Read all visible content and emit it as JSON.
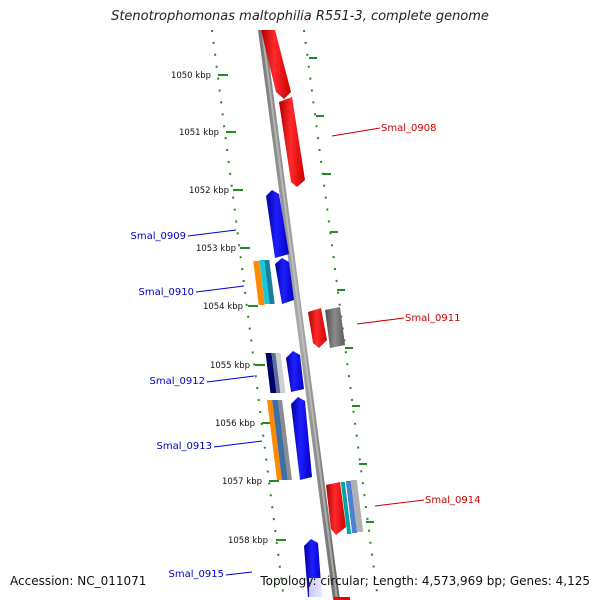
{
  "title": "Stenotrophomonas maltophilia R551-3, complete genome",
  "accession": "Accession: NC_011071",
  "summary": "Topology: circular; Length: 4,573,969 bp; Genes: 4,125",
  "ticks": [
    "1050 kbp",
    "1051 kbp",
    "1052 kbp",
    "1053 kbp",
    "1054 kbp",
    "1055 kbp",
    "1056 kbp",
    "1057 kbp",
    "1058 kbp"
  ],
  "gene_labels": {
    "smal_0908": "Smal_0908",
    "smal_0909": "Smal_0909",
    "smal_0910": "Smal_0910",
    "smal_0911": "Smal_0911",
    "smal_0912": "Smal_0912",
    "smal_0913": "Smal_0913",
    "smal_0914": "Smal_0914",
    "smal_0915": "Smal_0915"
  },
  "colors": {
    "reverse_strand": "#ee0000",
    "forward_strand": "#0000ee",
    "backbone": "#888888",
    "ticks": "#228b22"
  }
}
